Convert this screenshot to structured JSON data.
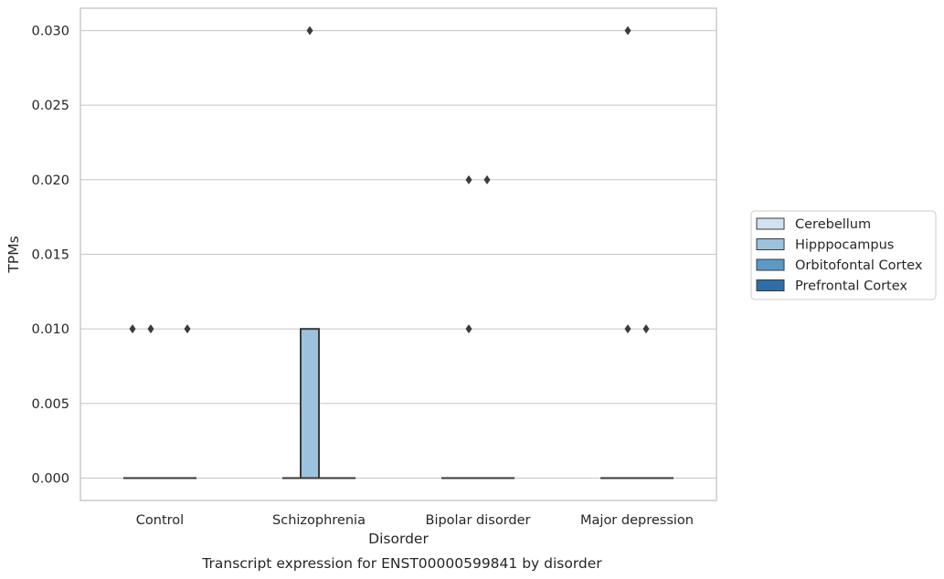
{
  "chart_data": {
    "type": "box",
    "caption": "Transcript expression for ENST00000599841 by disorder",
    "xlabel": "Disorder",
    "ylabel": "TPMs",
    "ylim": [
      -0.0015,
      0.0315
    ],
    "yticks": [
      0.0,
      0.005,
      0.01,
      0.015,
      0.02,
      0.025,
      0.03
    ],
    "ytick_labels": [
      "0.000",
      "0.005",
      "0.010",
      "0.015",
      "0.020",
      "0.025",
      "0.030"
    ],
    "categories": [
      "Control",
      "Schizophrenia",
      "Bipolar disorder",
      "Major depression"
    ],
    "grid": "horizontal",
    "legend_placement": "right",
    "series": [
      {
        "name": "Cerebellum",
        "color": "#d1e1f1",
        "boxes": [
          {
            "q1": 0,
            "median": 0,
            "q3": 0,
            "outliers": [
              0.01
            ]
          },
          {
            "q1": 0,
            "median": 0,
            "q3": 0,
            "outliers": []
          },
          {
            "q1": 0,
            "median": 0,
            "q3": 0,
            "outliers": []
          },
          {
            "q1": 0,
            "median": 0,
            "q3": 0,
            "outliers": []
          }
        ]
      },
      {
        "name": "Hipppocampus",
        "color": "#9cc3de",
        "boxes": [
          {
            "q1": 0,
            "median": 0,
            "q3": 0,
            "outliers": [
              0.01
            ]
          },
          {
            "q1": 0,
            "median": 0,
            "q3": 0.01,
            "outliers": [
              0.03
            ]
          },
          {
            "q1": 0,
            "median": 0,
            "q3": 0,
            "outliers": [
              0.01,
              0.02
            ]
          },
          {
            "q1": 0,
            "median": 0,
            "q3": 0,
            "outliers": [
              0.01,
              0.03
            ]
          }
        ]
      },
      {
        "name": "Orbitofontal Cortex",
        "color": "#5b9ac8",
        "boxes": [
          {
            "q1": 0,
            "median": 0,
            "q3": 0,
            "outliers": []
          },
          {
            "q1": 0,
            "median": 0,
            "q3": 0,
            "outliers": []
          },
          {
            "q1": 0,
            "median": 0,
            "q3": 0,
            "outliers": [
              0.02
            ]
          },
          {
            "q1": 0,
            "median": 0,
            "q3": 0,
            "outliers": [
              0.01
            ]
          }
        ]
      },
      {
        "name": "Prefrontal Cortex",
        "color": "#2e6fa8",
        "boxes": [
          {
            "q1": 0,
            "median": 0,
            "q3": 0,
            "outliers": [
              0.01
            ]
          },
          {
            "q1": 0,
            "median": 0,
            "q3": 0,
            "outliers": []
          },
          {
            "q1": 0,
            "median": 0,
            "q3": 0,
            "outliers": []
          },
          {
            "q1": 0,
            "median": 0,
            "q3": 0,
            "outliers": []
          }
        ]
      }
    ]
  }
}
